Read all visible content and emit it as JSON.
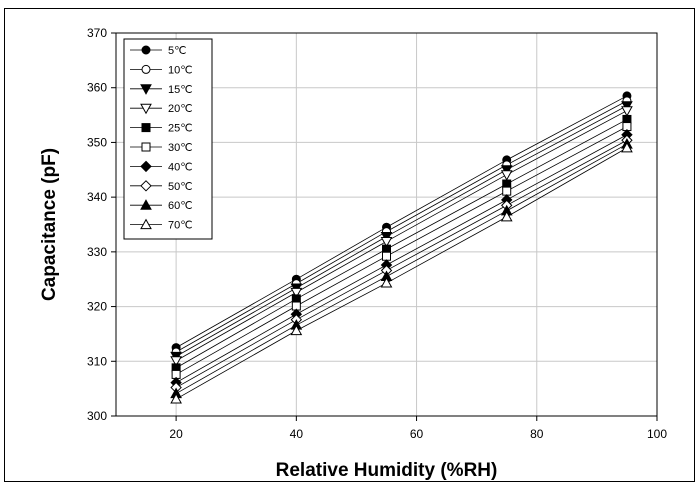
{
  "chart_data": {
    "type": "line",
    "title": "",
    "xlabel": "Relative Humidity (%RH)",
    "ylabel": "Capacitance (pF)",
    "xlim": [
      10,
      100
    ],
    "ylim": [
      300,
      370
    ],
    "xticks": [
      20,
      40,
      60,
      80,
      100
    ],
    "yticks": [
      300,
      310,
      320,
      330,
      340,
      350,
      360,
      370
    ],
    "grid": true,
    "legend_position": "top-left",
    "x": [
      20,
      40,
      55,
      75,
      95
    ],
    "series": [
      {
        "name": "5℃",
        "marker": "circle-filled",
        "values": [
          312.5,
          325.0,
          334.5,
          346.8,
          358.5
        ]
      },
      {
        "name": "10℃",
        "marker": "circle-open",
        "values": [
          311.7,
          324.2,
          333.7,
          345.9,
          357.6
        ]
      },
      {
        "name": "15℃",
        "marker": "triangle-down-filled",
        "values": [
          310.9,
          323.4,
          332.8,
          345.0,
          356.7
        ]
      },
      {
        "name": "20℃",
        "marker": "triangle-down-open",
        "values": [
          310.1,
          322.6,
          331.9,
          344.1,
          355.8
        ]
      },
      {
        "name": "25℃",
        "marker": "square-filled",
        "values": [
          308.8,
          321.4,
          330.5,
          342.4,
          354.2
        ]
      },
      {
        "name": "30℃",
        "marker": "square-open",
        "values": [
          307.6,
          320.1,
          329.2,
          341.1,
          352.9
        ]
      },
      {
        "name": "40℃",
        "marker": "diamond-filled",
        "values": [
          306.1,
          318.6,
          327.6,
          339.5,
          351.4
        ]
      },
      {
        "name": "50℃",
        "marker": "diamond-open",
        "values": [
          305.2,
          317.6,
          326.6,
          338.5,
          350.4
        ]
      },
      {
        "name": "60℃",
        "marker": "triangle-up-filled",
        "values": [
          304.1,
          316.6,
          325.5,
          337.5,
          349.7
        ]
      },
      {
        "name": "70℃",
        "marker": "triangle-up-open",
        "values": [
          303.1,
          315.6,
          324.3,
          336.4,
          349.0
        ]
      }
    ]
  }
}
